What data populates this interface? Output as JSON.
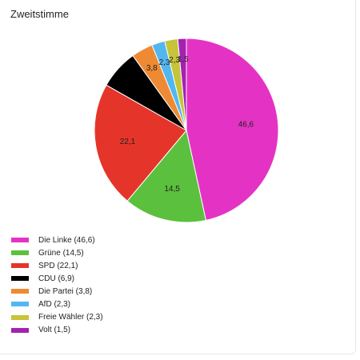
{
  "chart_data": {
    "type": "pie",
    "title": "Zweitstimme",
    "slices": [
      {
        "name": "Die Linke",
        "value": 46.6,
        "label": "46,6",
        "legend": "Die Linke (46,6)",
        "color": "#e433c4"
      },
      {
        "name": "Grüne",
        "value": 14.5,
        "label": "14,5",
        "legend": "Grüne (14,5)",
        "color": "#5bc03d"
      },
      {
        "name": "SPD",
        "value": 22.1,
        "label": "22,1",
        "legend": "SPD (22,1)",
        "color": "#e5352a"
      },
      {
        "name": "CDU",
        "value": 6.9,
        "label": "",
        "legend": "CDU (6,9)",
        "color": "#000000"
      },
      {
        "name": "Die Partei",
        "value": 3.8,
        "label": "3,8",
        "legend": "Die Partei (3,8)",
        "color": "#ef8a34"
      },
      {
        "name": "AfD",
        "value": 2.3,
        "label": "2,3",
        "legend": "AfD (2,3)",
        "color": "#52b7ef"
      },
      {
        "name": "Freie Wähler",
        "value": 2.3,
        "label": "2,3",
        "legend": "Freie Wähler (2,3)",
        "color": "#c5c43a"
      },
      {
        "name": "Volt",
        "value": 1.5,
        "label": "1,5",
        "legend": "Volt (1,5)",
        "color": "#a222b2"
      }
    ],
    "legend_position": "bottom-left"
  }
}
